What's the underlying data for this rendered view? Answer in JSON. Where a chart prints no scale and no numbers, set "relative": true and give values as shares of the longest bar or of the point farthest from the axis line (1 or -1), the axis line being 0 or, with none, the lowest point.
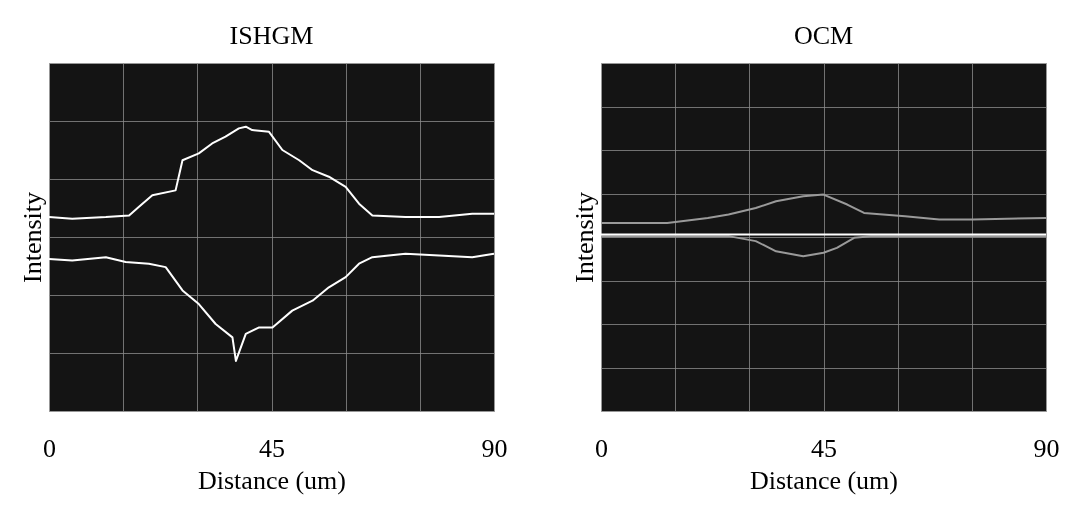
{
  "chart_data": [
    {
      "type": "line",
      "title": "ISHGM",
      "xlabel": "Distance (um)",
      "ylabel": "Intensity",
      "relative": true,
      "grid": true,
      "tick_labels": "x",
      "xlim": [
        0,
        90
      ],
      "xticks": [
        0,
        {
          "value": 15,
          "label": null
        },
        {
          "value": 30,
          "label": null
        },
        45,
        {
          "value": 60,
          "label": null
        },
        {
          "value": 75,
          "label": null
        },
        90
      ],
      "series": [
        {
          "color": "#ffffff",
          "x": [
            0,
            4.7,
            11.5,
            16.2,
            18.2,
            20.9,
            25.6,
            27.0,
            30.3,
            33.0,
            35.7,
            38.4,
            39.8,
            41.1,
            44.5,
            47.2,
            50.6,
            53.3,
            56.6,
            60.0,
            62.7,
            65.4,
            72.1,
            78.9,
            85.6,
            90
          ],
          "values": [
            0.682,
            0.676,
            0.682,
            0.688,
            0.718,
            0.759,
            0.776,
            0.882,
            0.906,
            0.941,
            0.965,
            0.994,
            1.0,
            0.988,
            0.982,
            0.918,
            0.882,
            0.847,
            0.824,
            0.788,
            0.729,
            0.688,
            0.682,
            0.682,
            0.694,
            0.694
          ]
        },
        {
          "color": "#ffffff",
          "x": [
            0,
            4.7,
            11.5,
            15.5,
            20.2,
            23.6,
            27.0,
            30.3,
            33.7,
            37.1,
            37.8,
            39.8,
            42.5,
            45.2,
            49.2,
            53.3,
            56.6,
            60.0,
            62.7,
            65.4,
            72.1,
            78.9,
            85.6,
            90
          ],
          "values": [
            0.535,
            0.529,
            0.541,
            0.524,
            0.518,
            0.506,
            0.424,
            0.376,
            0.306,
            0.259,
            0.176,
            0.271,
            0.294,
            0.294,
            0.353,
            0.388,
            0.435,
            0.471,
            0.518,
            0.541,
            0.553,
            0.547,
            0.541,
            0.553
          ]
        }
      ]
    },
    {
      "type": "line",
      "title": "OCM",
      "xlabel": "Distance (um)",
      "ylabel": "Intensity",
      "relative": true,
      "grid": true,
      "tick_labels": "x",
      "xlim": [
        0,
        90
      ],
      "xticks": [
        0,
        {
          "value": 15,
          "label": null
        },
        {
          "value": 30,
          "label": null
        },
        45,
        {
          "value": 60,
          "label": null
        },
        {
          "value": 75,
          "label": null
        },
        90
      ],
      "series": [
        {
          "color": "#9a9a9a",
          "x": [
            0,
            13.4,
            21.6,
            25.8,
            31.3,
            35.4,
            40.9,
            45.0,
            49.8,
            53.2,
            61.5,
            68.4,
            75.2,
            90
          ],
          "values": [
            0.869,
            0.869,
            0.892,
            0.908,
            0.938,
            0.969,
            0.992,
            1.0,
            0.954,
            0.915,
            0.9,
            0.885,
            0.885,
            0.892
          ]
        },
        {
          "color": "#9a9a9a",
          "x": [
            0,
            13.4,
            25.8,
            31.3,
            35.4,
            40.9,
            45.0,
            47.7,
            51.2,
            54.6,
            90
          ],
          "values": [
            0.808,
            0.808,
            0.808,
            0.785,
            0.738,
            0.715,
            0.731,
            0.754,
            0.8,
            0.808,
            0.808
          ]
        },
        {
          "color": "#ffffff",
          "x": [
            0,
            90
          ],
          "values": [
            0.815,
            0.815
          ]
        }
      ]
    }
  ]
}
